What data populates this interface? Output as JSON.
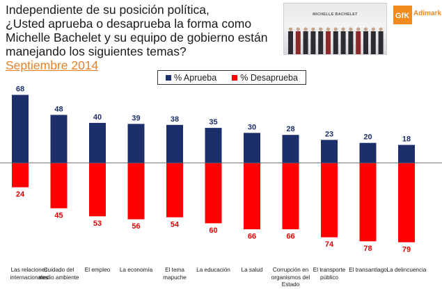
{
  "title": {
    "lines": [
      "Independiente de su posición política,",
      "¿Usted aprueba o desaprueba la forma como",
      "Michelle Bachelet y su equipo de gobierno están",
      "manejando los siguientes temas?"
    ],
    "subtitle": "Septiembre 2014"
  },
  "photo": {
    "banner_text": "MICHELLE BACHELET"
  },
  "logo": {
    "mark": "GfK",
    "name": "Adimark",
    "color": "#f28a1e"
  },
  "chart_data": {
    "type": "bar",
    "categories": [
      "Las relaciones internacionales",
      "Cuidado del medio ambiente",
      "El empleo",
      "La economía",
      "El tema mapuche",
      "La educación",
      "La salud",
      "Corrupción en organismos del Estado",
      "El transporte público",
      "El transantiago",
      "La delincuencia"
    ],
    "series": [
      {
        "name": "% Aprueba",
        "color": "#1c2f6b",
        "label_color": "#1c2f6b",
        "values": [
          68,
          48,
          40,
          39,
          38,
          35,
          30,
          28,
          23,
          20,
          18
        ]
      },
      {
        "name": "% Desaprueba",
        "color": "#ff0000",
        "label_color": "#e00000",
        "values": [
          24,
          45,
          53,
          56,
          54,
          60,
          66,
          66,
          74,
          78,
          79
        ]
      }
    ],
    "layout_note_values": "Aprueba drawn upward from baseline, Desaprueba drawn downward",
    "legend_position": "top-center",
    "grid": false
  }
}
